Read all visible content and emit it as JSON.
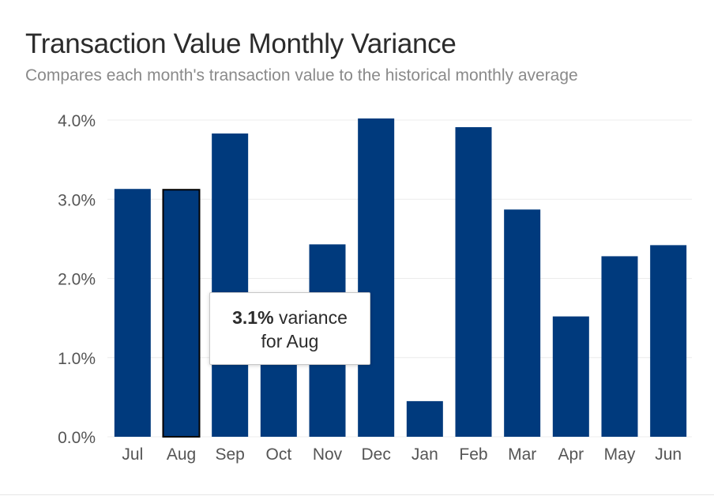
{
  "chart_data": {
    "type": "bar",
    "title": "Transaction Value Monthly Variance",
    "subtitle": "Compares each month's transaction value to the historical monthly average",
    "categories": [
      "Jul",
      "Aug",
      "Sep",
      "Oct",
      "Nov",
      "Dec",
      "Jan",
      "Feb",
      "Mar",
      "Apr",
      "May",
      "Jun"
    ],
    "values": [
      3.13,
      3.12,
      3.83,
      1.4,
      2.43,
      4.02,
      0.45,
      3.91,
      2.87,
      1.52,
      2.28,
      2.42
    ],
    "y_ticks": [
      "0.0%",
      "1.0%",
      "2.0%",
      "3.0%",
      "4.0%"
    ],
    "ylim": [
      0,
      4
    ],
    "grid": true,
    "bar_color": "#003a7d",
    "highlighted_category": "Aug"
  },
  "tooltip": {
    "value": "3.1%",
    "text_suffix": "variance",
    "line2": "for Aug"
  }
}
